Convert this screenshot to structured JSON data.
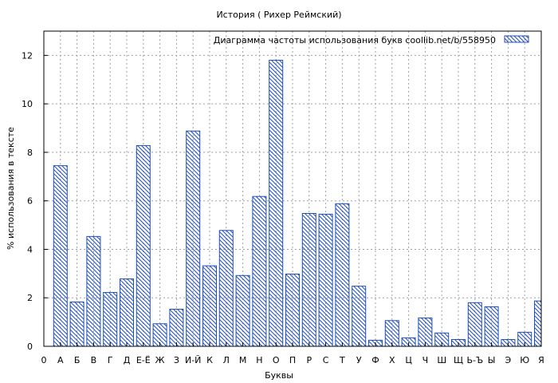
{
  "chart_data": {
    "type": "bar",
    "title": "История ( Рихер Реймский)",
    "xlabel": "Буквы",
    "ylabel": "% использования в тексте",
    "legend": {
      "label": "Диаграмма частоты использования букв  coollib.net/b/558950",
      "placement": "top-right"
    },
    "ylim": [
      0,
      13
    ],
    "yticks": [
      0,
      2,
      4,
      6,
      8,
      10,
      12
    ],
    "grid": true,
    "colors": {
      "bar_stroke": "#1f4fb8",
      "grid": "#a0a0a0"
    },
    "categories": [
      "0",
      "А",
      "Б",
      "В",
      "Г",
      "Д",
      "Е-Ё",
      "Ж",
      "З",
      "И-Й",
      "К",
      "Л",
      "М",
      "Н",
      "О",
      "П",
      "Р",
      "С",
      "Т",
      "У",
      "Ф",
      "Х",
      "Ц",
      "Ч",
      "Ш",
      "Щ",
      "Ь-Ъ",
      "Ы",
      "Э",
      "Ю",
      "Я"
    ],
    "values": [
      0,
      7.45,
      1.83,
      4.53,
      2.22,
      2.78,
      8.28,
      0.93,
      1.53,
      8.88,
      3.32,
      4.78,
      2.92,
      6.18,
      11.8,
      2.98,
      5.48,
      5.45,
      5.88,
      2.48,
      0.25,
      1.06,
      0.35,
      1.17,
      0.55,
      0.28,
      1.8,
      1.63,
      0.28,
      0.58,
      1.87
    ]
  }
}
